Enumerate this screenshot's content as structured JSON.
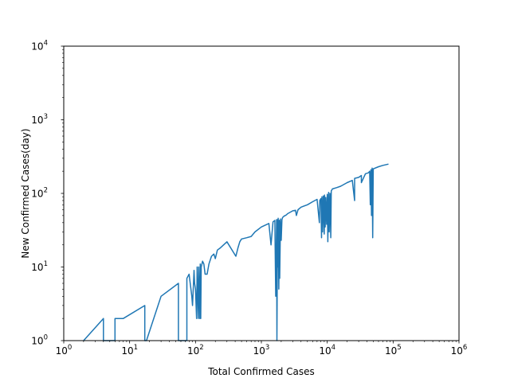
{
  "chart_data": {
    "type": "line",
    "title": "",
    "xlabel": "Total Confirmed Cases",
    "ylabel": "New Confirmed Cases(day)",
    "xscale": "log",
    "yscale": "log",
    "xlim": [
      1,
      1000000
    ],
    "ylim": [
      1,
      10000
    ],
    "grid": false,
    "legend": "none",
    "x_ticks": [
      {
        "value": 1,
        "base": "10",
        "exp": "0"
      },
      {
        "value": 10,
        "base": "10",
        "exp": "1"
      },
      {
        "value": 100,
        "base": "10",
        "exp": "2"
      },
      {
        "value": 1000,
        "base": "10",
        "exp": "3"
      },
      {
        "value": 10000,
        "base": "10",
        "exp": "4"
      },
      {
        "value": 100000,
        "base": "10",
        "exp": "5"
      },
      {
        "value": 1000000,
        "base": "10",
        "exp": "6"
      }
    ],
    "y_ticks": [
      {
        "value": 1,
        "base": "10",
        "exp": "0"
      },
      {
        "value": 10,
        "base": "10",
        "exp": "1"
      },
      {
        "value": 100,
        "base": "10",
        "exp": "2"
      },
      {
        "value": 1000,
        "base": "10",
        "exp": "3"
      },
      {
        "value": 10000,
        "base": "10",
        "exp": "4"
      }
    ],
    "series": [
      {
        "color": "#1f77b4",
        "x": [
          2,
          4,
          4,
          6,
          6,
          8,
          17,
          17,
          18,
          30,
          55,
          55,
          74,
          74,
          80,
          88,
          90,
          95,
          97,
          100,
          104,
          106,
          110,
          112,
          116,
          118,
          120,
          122,
          128,
          134,
          140,
          150,
          160,
          175,
          190,
          200,
          215,
          235,
          300,
          410,
          440,
          470,
          500,
          600,
          700,
          800,
          1000,
          1300,
          1400,
          1500,
          1600,
          1650,
          1700,
          1720,
          1760,
          1780,
          1800,
          1840,
          1870,
          1900,
          1950,
          2000,
          2050,
          2100,
          2150,
          2200,
          2300,
          2400,
          2500,
          3000,
          3300,
          3400,
          3600,
          4000,
          5000,
          6000,
          7000,
          7600,
          7700,
          8000,
          8200,
          8300,
          8500,
          8700,
          9000,
          9100,
          9300,
          9500,
          9800,
          10000,
          10200,
          10500,
          10700,
          11000,
          11300,
          11500,
          12000,
          14000,
          16000,
          20000,
          24000,
          26000,
          26000,
          30000,
          33000,
          33000,
          38000,
          42000,
          44000,
          45000,
          46000,
          47000,
          48000,
          49000,
          50000,
          60000,
          70000,
          85000
        ],
        "y": [
          1,
          2,
          1,
          1,
          2,
          2,
          3,
          1,
          1,
          4,
          6,
          1,
          1,
          7,
          8,
          4,
          3,
          9,
          6,
          5,
          2,
          10,
          2,
          10,
          2,
          11,
          2,
          10,
          12,
          11,
          8,
          8,
          11,
          14,
          15,
          13,
          17,
          18,
          22,
          14,
          18,
          22,
          24,
          25,
          26,
          30,
          35,
          39,
          20,
          41,
          43,
          4,
          44,
          1,
          44,
          10,
          46,
          5,
          43,
          7,
          45,
          23,
          44,
          47,
          48,
          49,
          50,
          51,
          53,
          58,
          59,
          50,
          60,
          65,
          70,
          77,
          83,
          40,
          80,
          85,
          25,
          90,
          30,
          92,
          28,
          95,
          35,
          88,
          38,
          97,
          22,
          103,
          30,
          100,
          25,
          108,
          115,
          120,
          125,
          140,
          150,
          80,
          160,
          165,
          175,
          140,
          185,
          190,
          200,
          70,
          210,
          50,
          220,
          25,
          215,
          230,
          240,
          250
        ]
      }
    ]
  }
}
